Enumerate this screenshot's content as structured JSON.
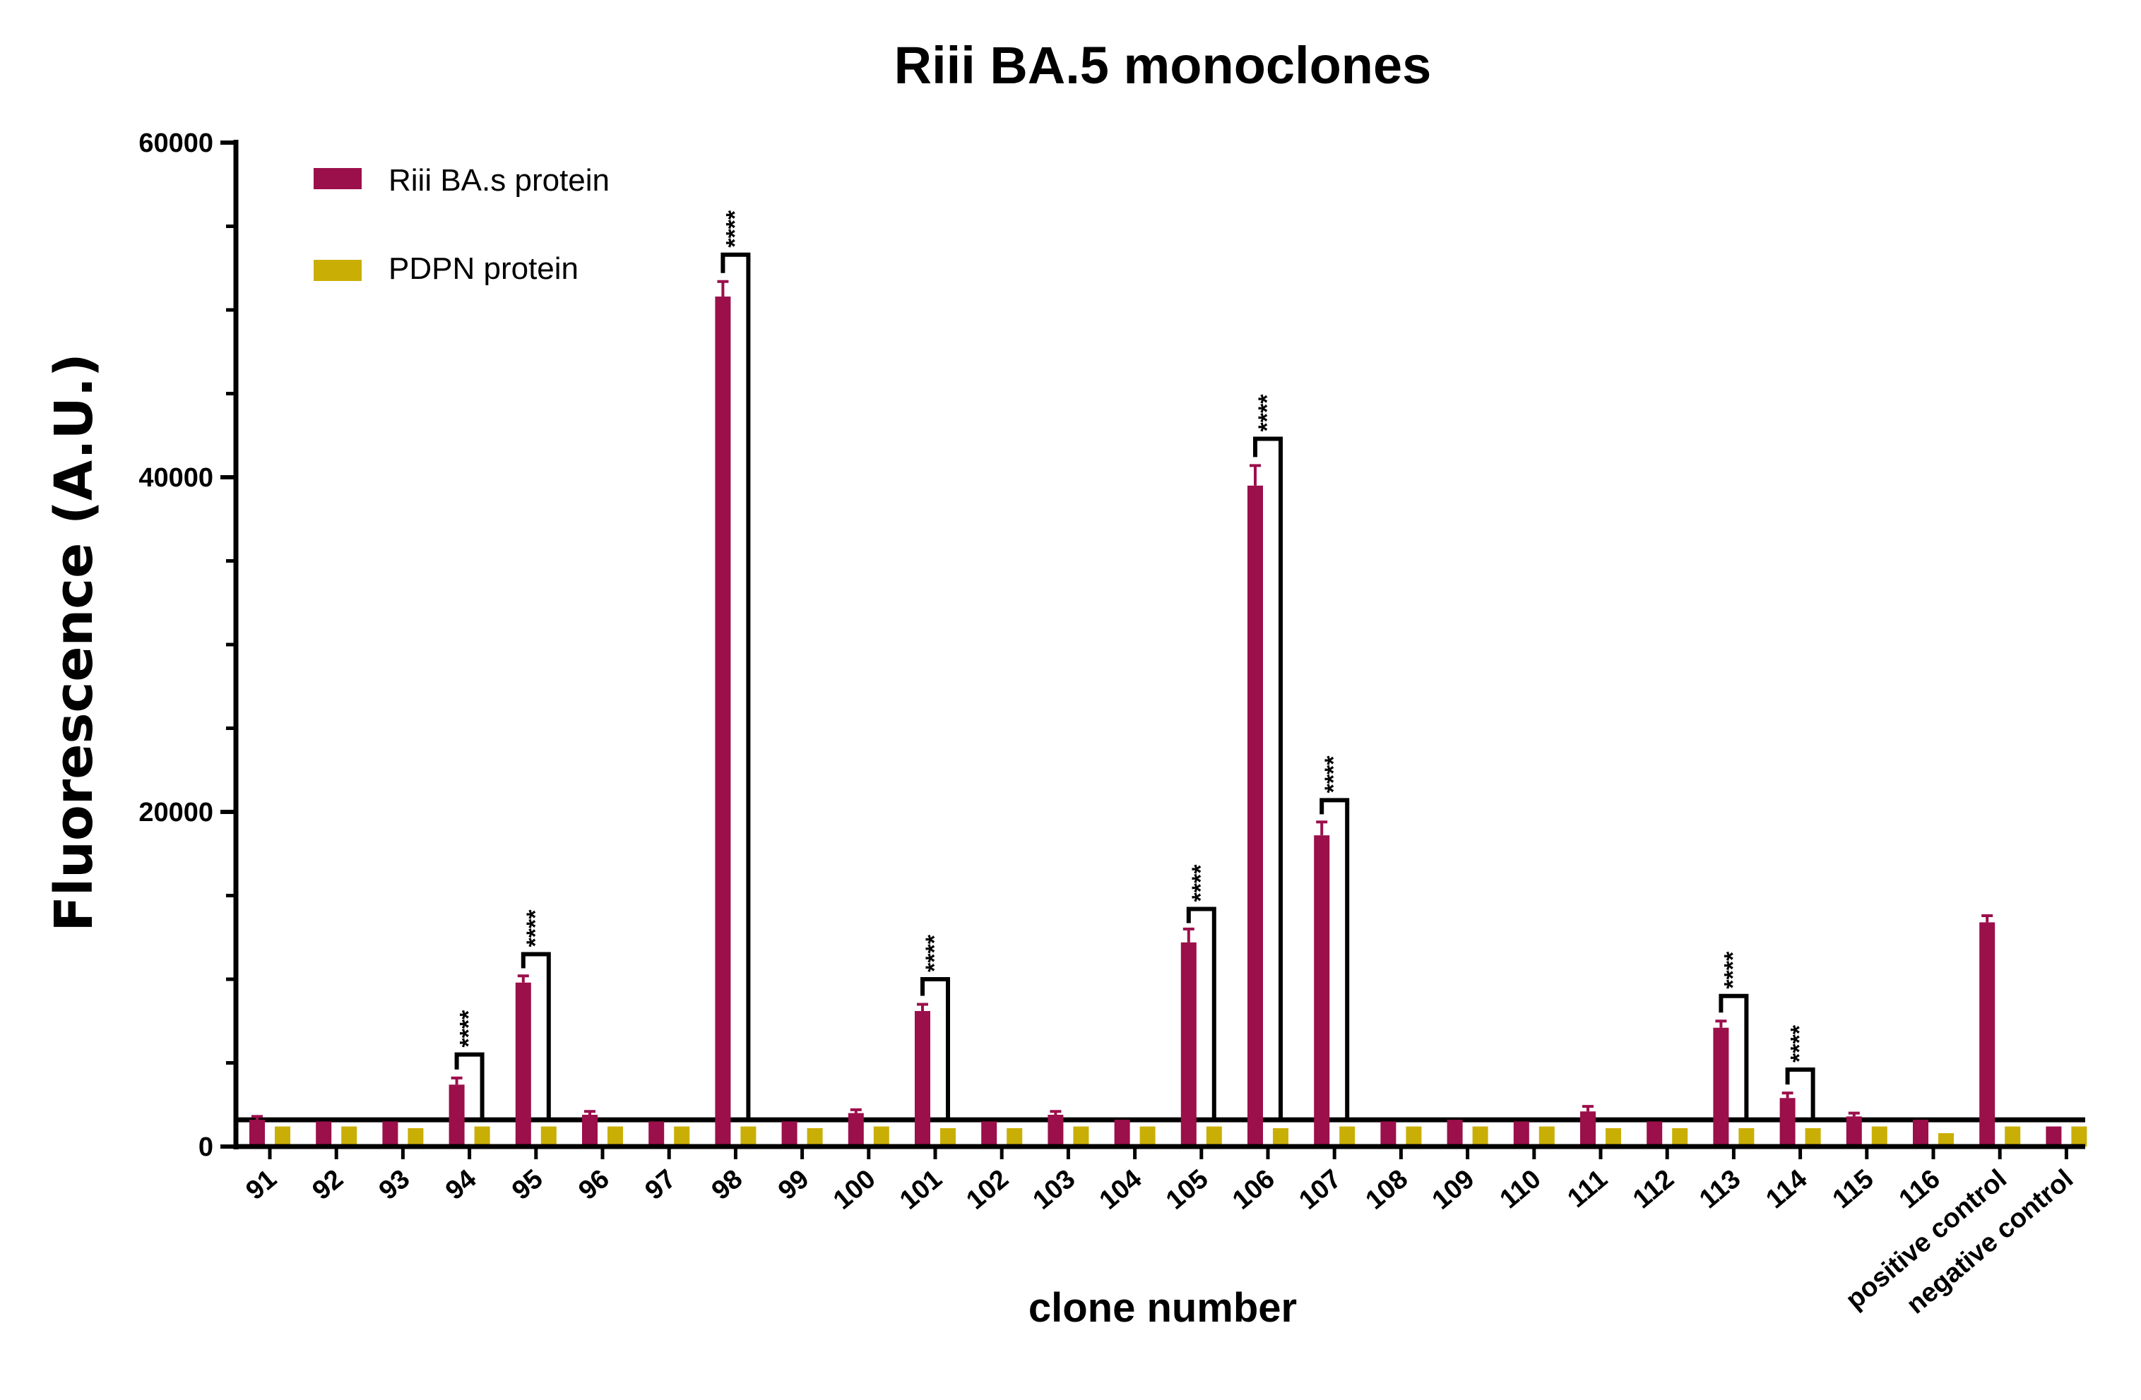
{
  "chart_data": {
    "type": "bar",
    "title": "Riii BA.5 monoclones",
    "xlabel": "clone number",
    "ylabel": "Fluorescence (A.U.)",
    "ylim": [
      0,
      60000
    ],
    "yticks": [
      "0",
      "20000",
      "40000",
      "60000"
    ],
    "legend_position": "top-left",
    "categories": [
      "91",
      "92",
      "93",
      "94",
      "95",
      "96",
      "97",
      "98",
      "99",
      "100",
      "101",
      "102",
      "103",
      "104",
      "105",
      "106",
      "107",
      "108",
      "109",
      "110",
      "111",
      "112",
      "113",
      "114",
      "115",
      "116",
      "positive control",
      "negative control"
    ],
    "series": [
      {
        "name": "Riii BA.s protein",
        "color": "#9B0F4B",
        "values": [
          1600,
          1500,
          1500,
          3700,
          9800,
          1900,
          1500,
          50800,
          1500,
          2000,
          8100,
          1500,
          1900,
          1600,
          12200,
          39500,
          18600,
          1500,
          1600,
          1500,
          2100,
          1500,
          7100,
          2900,
          1800,
          1600,
          13400,
          1200
        ],
        "errors": [
          200,
          0,
          0,
          400,
          400,
          200,
          0,
          900,
          0,
          200,
          400,
          0,
          200,
          0,
          800,
          1200,
          800,
          0,
          0,
          0,
          300,
          0,
          400,
          300,
          200,
          0,
          400,
          0
        ]
      },
      {
        "name": "PDPN protein",
        "color": "#C9AF05",
        "values": [
          1200,
          1200,
          1100,
          1200,
          1200,
          1200,
          1200,
          1200,
          1100,
          1200,
          1100,
          1100,
          1200,
          1200,
          1200,
          1100,
          1200,
          1200,
          1200,
          1200,
          1100,
          1100,
          1100,
          1100,
          1200,
          800,
          1200,
          1200
        ],
        "errors": [
          0,
          0,
          0,
          0,
          0,
          0,
          0,
          0,
          0,
          0,
          0,
          0,
          0,
          0,
          0,
          0,
          0,
          0,
          0,
          0,
          0,
          0,
          0,
          0,
          0,
          0,
          0,
          0
        ]
      }
    ],
    "threshold_line": 1600,
    "significance": [
      {
        "category": "94",
        "label": "****",
        "bracket_y": 5500
      },
      {
        "category": "95",
        "label": "****",
        "bracket_y": 11500
      },
      {
        "category": "98",
        "label": "****",
        "bracket_y": 53300
      },
      {
        "category": "101",
        "label": "****",
        "bracket_y": 10000
      },
      {
        "category": "105",
        "label": "****",
        "bracket_y": 14200
      },
      {
        "category": "106",
        "label": "****",
        "bracket_y": 42300
      },
      {
        "category": "107",
        "label": "****",
        "bracket_y": 20700
      },
      {
        "category": "113",
        "label": "****",
        "bracket_y": 9000
      },
      {
        "category": "114",
        "label": "****",
        "bracket_y": 4600
      }
    ]
  }
}
